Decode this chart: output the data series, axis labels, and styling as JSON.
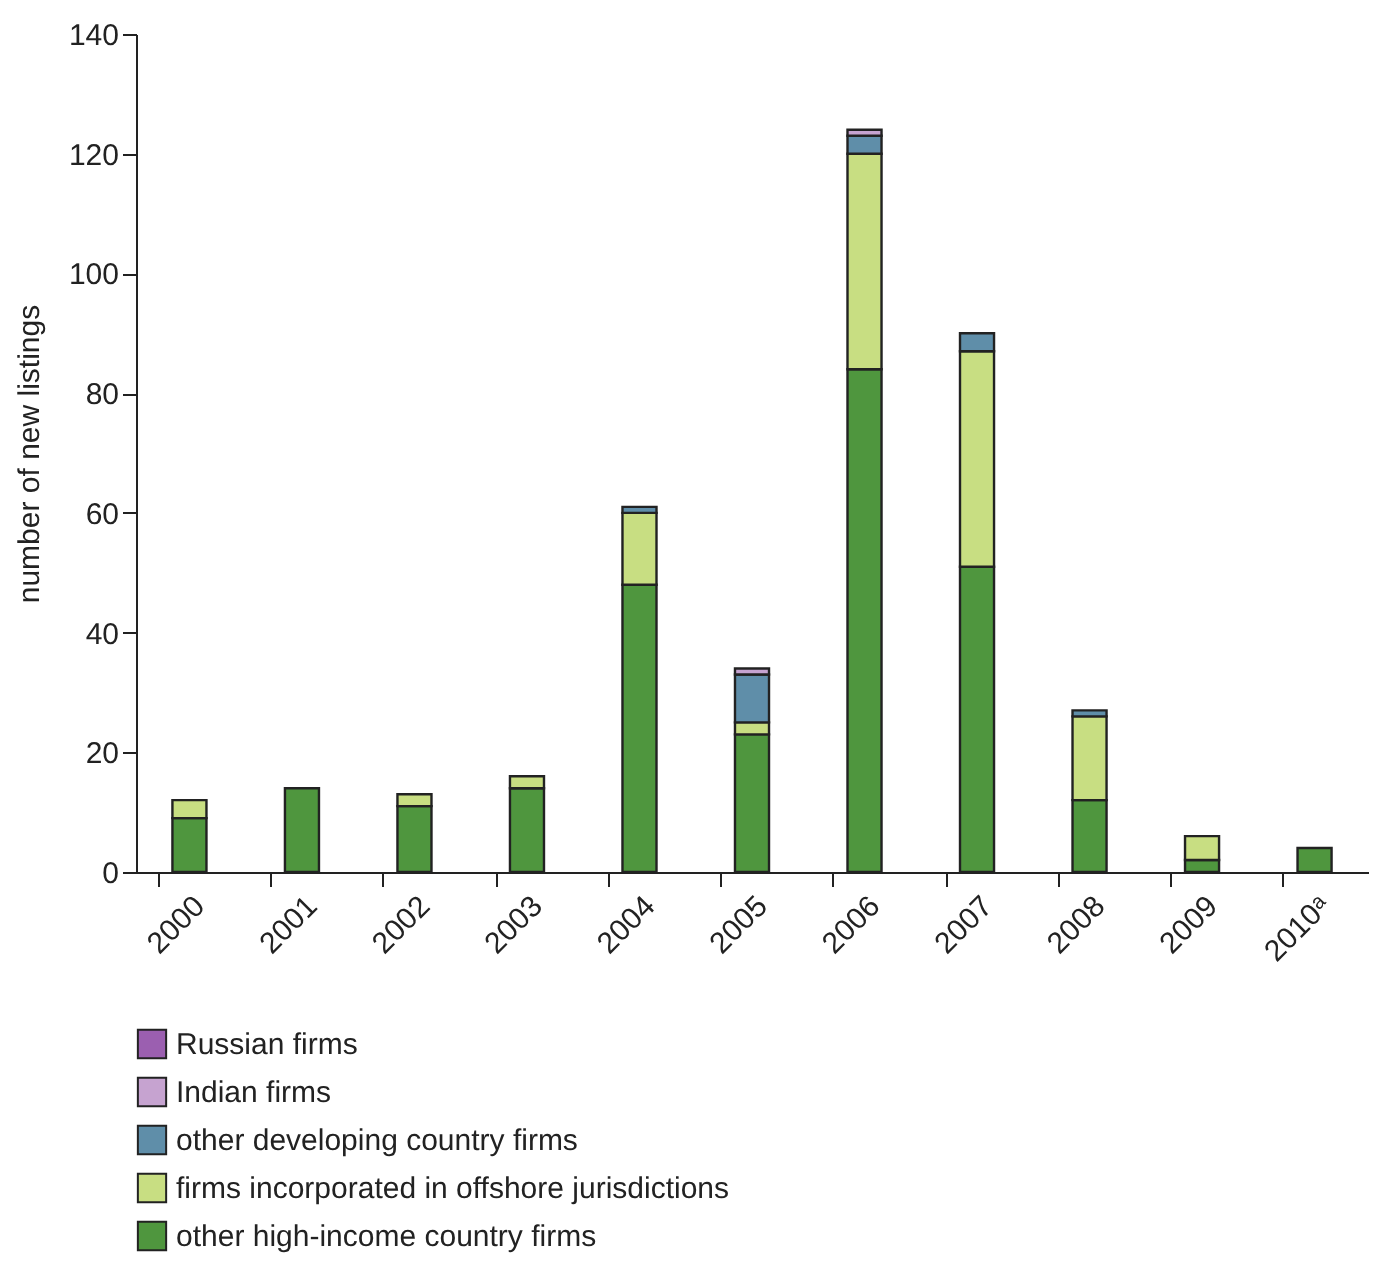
{
  "chart_data": {
    "type": "bar",
    "stacked": true,
    "ylabel": "number of new listings",
    "categories": [
      "2000",
      "2001",
      "2002",
      "2003",
      "2004",
      "2005",
      "2006",
      "2007",
      "2008",
      "2009",
      "2010ᵃ"
    ],
    "series": [
      {
        "name": "other high-income country firms",
        "color": "#4f963e",
        "values": [
          9,
          14,
          11,
          14,
          48,
          23,
          84,
          51,
          12,
          2,
          4
        ]
      },
      {
        "name": "firms incorporated in offshore jurisdictions",
        "color": "#c8de82",
        "values": [
          3,
          0,
          2,
          2,
          12,
          2,
          36,
          36,
          14,
          4,
          0
        ]
      },
      {
        "name": "other developing country firms",
        "color": "#5f8ea9",
        "values": [
          0,
          0,
          0,
          0,
          1,
          8,
          3,
          3,
          1,
          0,
          0
        ]
      },
      {
        "name": "Indian firms",
        "color": "#c6a3d0",
        "values": [
          0,
          0,
          0,
          0,
          0,
          1,
          1,
          0,
          0,
          0,
          0
        ]
      },
      {
        "name": "Russian firms",
        "color": "#9b5fb0",
        "values": [
          0,
          0,
          0,
          0,
          0,
          0,
          0,
          0,
          0,
          0,
          0
        ]
      }
    ],
    "ylim": [
      0,
      140
    ],
    "yticks": [
      0,
      20,
      40,
      60,
      80,
      100,
      120,
      140
    ],
    "grid": false,
    "legend": "bottom"
  }
}
